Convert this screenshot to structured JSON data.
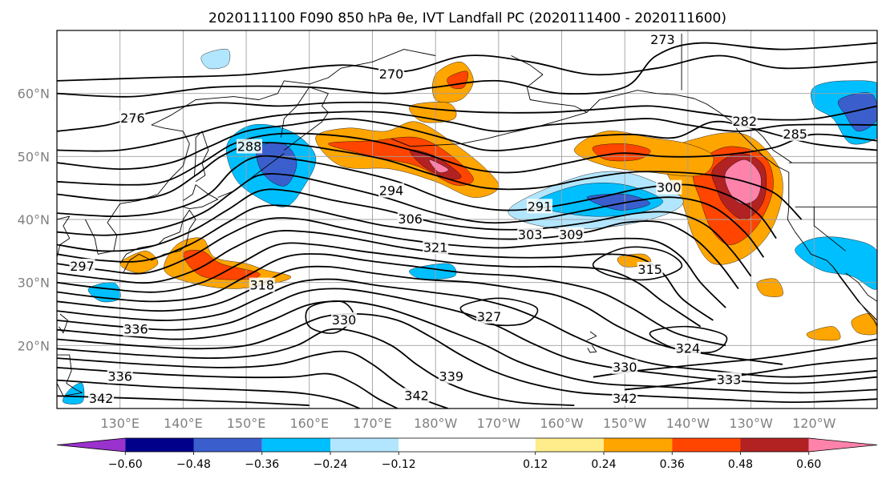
{
  "figure": {
    "title": "2020111100 F090 850 hPa θe, IVT Landfall PC (2020111400 - 2020111600)"
  },
  "map": {
    "projection": "PlateCarree",
    "lon_range": [
      120,
      250
    ],
    "lat_range": [
      10,
      70
    ],
    "gridlines": true,
    "lat_ticks": [
      {
        "lat": 60,
        "label": "60°N"
      },
      {
        "lat": 50,
        "label": "50°N"
      },
      {
        "lat": 40,
        "label": "40°N"
      },
      {
        "lat": 30,
        "label": "30°N"
      },
      {
        "lat": 20,
        "label": "20°N"
      }
    ],
    "lon_ticks": [
      {
        "lon": 130,
        "label": "130°E"
      },
      {
        "lon": 140,
        "label": "140°E"
      },
      {
        "lon": 150,
        "label": "150°E"
      },
      {
        "lon": 160,
        "label": "160°E"
      },
      {
        "lon": 170,
        "label": "170°E"
      },
      {
        "lon": 180,
        "label": "180°W"
      },
      {
        "lon": 190,
        "label": "170°W"
      },
      {
        "lon": 200,
        "label": "160°W"
      },
      {
        "lon": 210,
        "label": "150°W"
      },
      {
        "lon": 220,
        "label": "140°W"
      },
      {
        "lon": 230,
        "label": "130°W"
      },
      {
        "lon": 240,
        "label": "120°W"
      }
    ]
  },
  "contour_labels": [
    {
      "text": "270",
      "lon": 173,
      "lat": 63
    },
    {
      "text": "273",
      "lon": 216,
      "lat": 68.5
    },
    {
      "text": "276",
      "lon": 132,
      "lat": 56
    },
    {
      "text": "282",
      "lon": 229,
      "lat": 55.5
    },
    {
      "text": "285",
      "lon": 237,
      "lat": 53.5
    },
    {
      "text": "288",
      "lon": 150.5,
      "lat": 51.5
    },
    {
      "text": "291",
      "lon": 196.5,
      "lat": 42
    },
    {
      "text": "294",
      "lon": 173,
      "lat": 44.5
    },
    {
      "text": "297",
      "lon": 124,
      "lat": 32.5
    },
    {
      "text": "300",
      "lon": 217,
      "lat": 45
    },
    {
      "text": "303",
      "lon": 195,
      "lat": 37.5
    },
    {
      "text": "306",
      "lon": 176,
      "lat": 40
    },
    {
      "text": "309",
      "lon": 201.5,
      "lat": 37.5
    },
    {
      "text": "315",
      "lon": 214,
      "lat": 32
    },
    {
      "text": "318",
      "lon": 152.5,
      "lat": 29.5
    },
    {
      "text": "321",
      "lon": 180,
      "lat": 35.5
    },
    {
      "text": "327",
      "lon": 188.5,
      "lat": 24.5
    },
    {
      "text": "330",
      "lon": 165.5,
      "lat": 24
    },
    {
      "text": "330",
      "lon": 210,
      "lat": 16.5
    },
    {
      "text": "333",
      "lon": 226.5,
      "lat": 14.5
    },
    {
      "text": "336",
      "lon": 132.5,
      "lat": 22.5
    },
    {
      "text": "336",
      "lon": 130,
      "lat": 15
    },
    {
      "text": "339",
      "lon": 182.5,
      "lat": 15
    },
    {
      "text": "342",
      "lon": 127,
      "lat": 11.5
    },
    {
      "text": "342",
      "lon": 177,
      "lat": 12
    },
    {
      "text": "342",
      "lon": 210,
      "lat": 11.5
    },
    {
      "text": "324",
      "lon": 220,
      "lat": 19.5
    }
  ],
  "colorbar": {
    "extend": "both",
    "boundaries": [
      -0.72,
      -0.6,
      -0.48,
      -0.36,
      -0.24,
      -0.12,
      0.12,
      0.24,
      0.36,
      0.48,
      0.6,
      0.72
    ],
    "colors": [
      "#9a32cd",
      "#00008b",
      "#3a5fcd",
      "#00bfff",
      "#b2e6ff",
      "#ffffff",
      "#ffec8b",
      "#ffa500",
      "#ff4500",
      "#b22222",
      "#ff82ab"
    ],
    "ticks": [
      {
        "value": -0.6,
        "label": "−0.60"
      },
      {
        "value": -0.48,
        "label": "−0.48"
      },
      {
        "value": -0.36,
        "label": "−0.36"
      },
      {
        "value": -0.24,
        "label": "−0.24"
      },
      {
        "value": -0.12,
        "label": "−0.12"
      },
      {
        "value": 0.12,
        "label": "0.12"
      },
      {
        "value": 0.24,
        "label": "0.24"
      },
      {
        "value": 0.36,
        "label": "0.36"
      },
      {
        "value": 0.48,
        "label": "0.48"
      },
      {
        "value": 0.6,
        "label": "0.60"
      }
    ]
  }
}
